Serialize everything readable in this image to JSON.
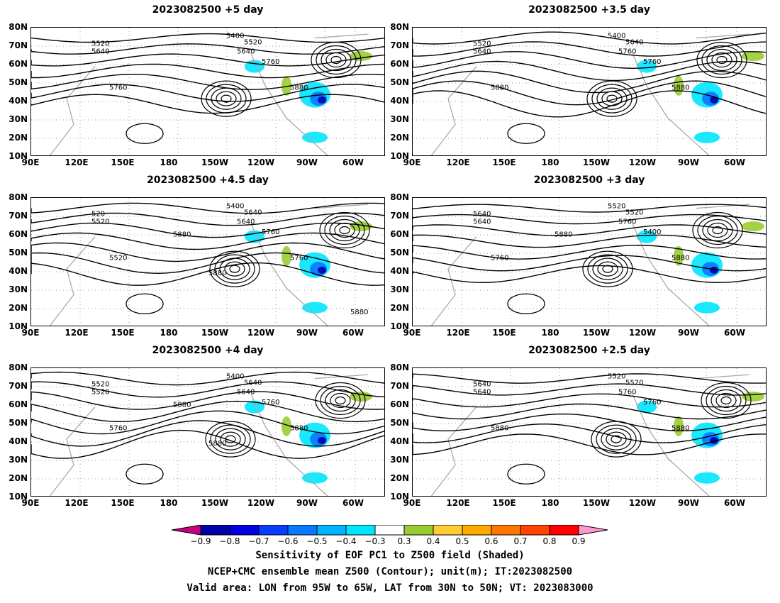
{
  "lat_axis": {
    "top_panels": [
      "80N",
      "70N",
      "60N",
      "50N",
      "40N",
      "30N",
      "20N",
      "10N"
    ],
    "other_panels": [
      "80N",
      "70N",
      "60N",
      "50N",
      "40N",
      "30N",
      "20N",
      "10N"
    ]
  },
  "lon_axis": [
    "90E",
    "120E",
    "150E",
    "180",
    "150W",
    "120W",
    "90W",
    "60W"
  ],
  "panels": [
    {
      "id": "p1",
      "title": "2023082500  +5  day",
      "contour_labels": [
        "5400",
        "5520",
        "5520",
        "5640",
        "5640",
        "5760",
        "5760",
        "5880"
      ]
    },
    {
      "id": "p2",
      "title": "2023082500  +3.5  day",
      "contour_labels": [
        "5400",
        "5520",
        "5640",
        "5640",
        "5760",
        "5760",
        "5880",
        "5880"
      ]
    },
    {
      "id": "p3",
      "title": "2023082500  +4.5  day",
      "contour_labels": [
        "5400",
        "520",
        "5640",
        "5520",
        "5640",
        "5760",
        "5520",
        "5760",
        "5880",
        "5880",
        "5880"
      ]
    },
    {
      "id": "p4",
      "title": "2023082500  +3  day",
      "contour_labels": [
        "5520",
        "5640",
        "5520",
        "5640",
        "5760",
        "5400",
        "5760",
        "5880",
        "5880"
      ]
    },
    {
      "id": "p5",
      "title": "2023082500  +4  day",
      "contour_labels": [
        "5400",
        "5520",
        "5640",
        "5520",
        "5640",
        "5760",
        "5760",
        "5880",
        "5880",
        "5880"
      ]
    },
    {
      "id": "p6",
      "title": "2023082500  +2.5  day",
      "contour_labels": [
        "5520",
        "5640",
        "5520",
        "5640",
        "5760",
        "5760",
        "5880",
        "5880"
      ]
    }
  ],
  "colorbar": {
    "labels": [
      "−0.9",
      "−0.8",
      "−0.7",
      "−0.6",
      "−0.5",
      "−0.4",
      "−0.3",
      "0.3",
      "0.4",
      "0.5",
      "0.6",
      "0.7",
      "0.8",
      "0.9"
    ],
    "colors": [
      "#c8007f",
      "#0000a8",
      "#0000e0",
      "#0a3cff",
      "#0a78ff",
      "#00b4ff",
      "#00e6ff",
      "#ffffff",
      "#99cc33",
      "#ffcc33",
      "#ffaa00",
      "#ff7700",
      "#ff4400",
      "#ff0000",
      "#ff99cc"
    ]
  },
  "footer": {
    "line1": "Sensitivity of EOF PC1 to Z500 field (Shaded)",
    "line2": "NCEP+CMC ensemble mean Z500 (Contour); unit(m); IT:2023082500",
    "line3": "Valid area: LON from 95W to 65W, LAT from 30N to 50N; VT: 2023083000"
  }
}
